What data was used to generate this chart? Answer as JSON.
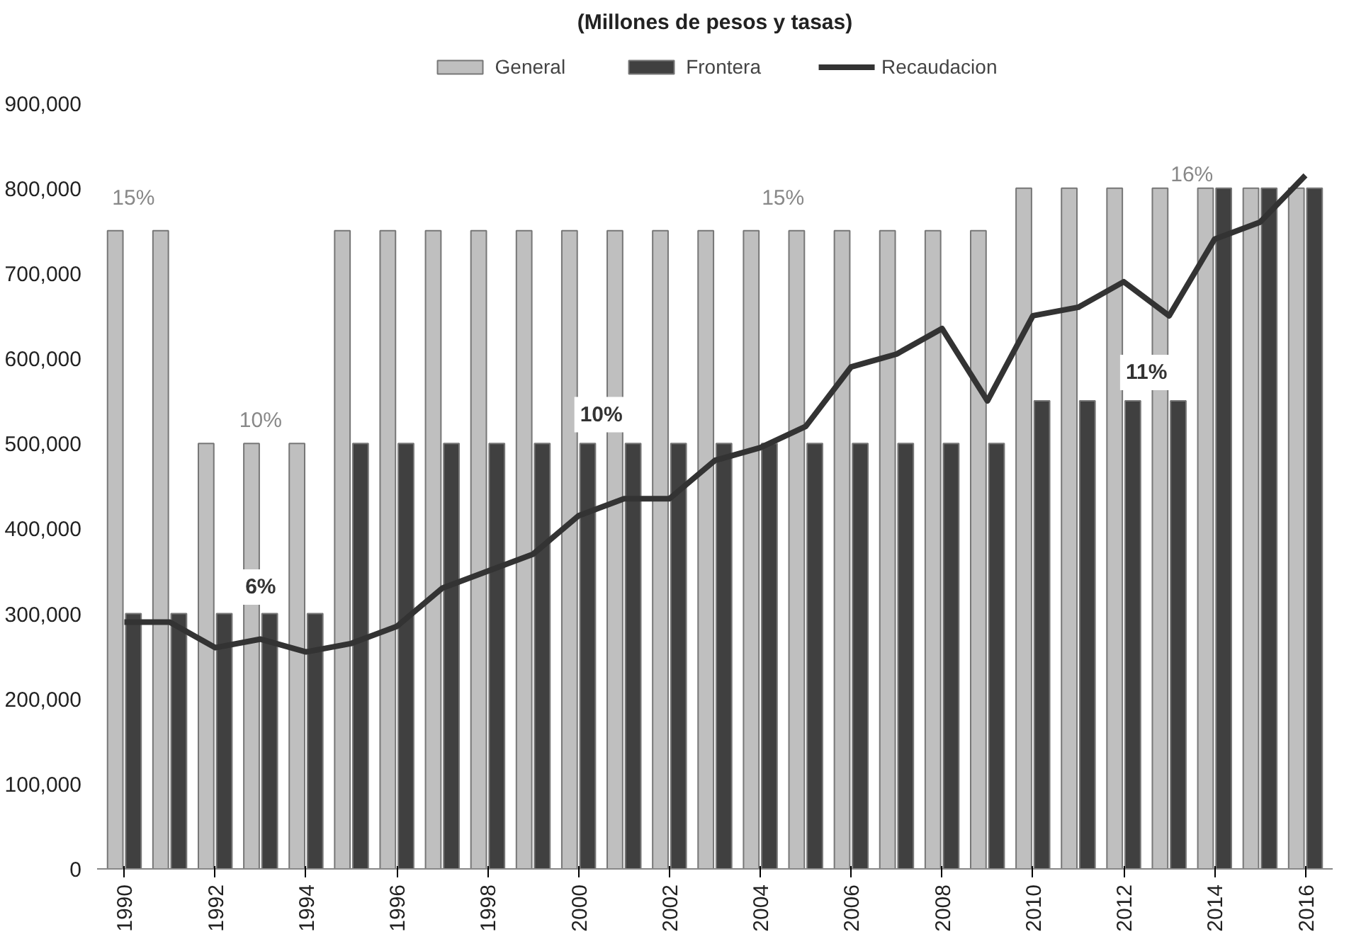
{
  "chart_data": {
    "type": "bar",
    "title": "(Millones de pesos y tasas)",
    "categories": [
      "1990",
      null,
      "1992",
      null,
      "1994",
      null,
      "1996",
      null,
      "1998",
      null,
      "2000",
      null,
      "2002",
      null,
      "2004",
      null,
      "2006",
      null,
      "2008",
      null,
      "2010",
      null,
      "2012",
      null,
      "2014",
      null,
      "2016"
    ],
    "series": [
      {
        "name": "General",
        "color": "#bfbfbf",
        "values": [
          750000,
          750000,
          500000,
          500000,
          500000,
          750000,
          750000,
          750000,
          750000,
          750000,
          750000,
          750000,
          750000,
          750000,
          750000,
          750000,
          750000,
          750000,
          750000,
          750000,
          800000,
          800000,
          800000,
          800000,
          800000,
          800000,
          800000
        ]
      },
      {
        "name": "Frontera",
        "color": "#404040",
        "values": [
          300000,
          300000,
          300000,
          300000,
          300000,
          500000,
          500000,
          500000,
          500000,
          500000,
          500000,
          500000,
          500000,
          500000,
          500000,
          500000,
          500000,
          500000,
          500000,
          500000,
          550000,
          550000,
          550000,
          550000,
          800000,
          800000,
          800000
        ]
      },
      {
        "name": "Recaudacion",
        "type": "line",
        "color": "#333333",
        "values": [
          290000,
          290000,
          260000,
          270000,
          255000,
          265000,
          285000,
          330000,
          350000,
          370000,
          415000,
          435000,
          435000,
          480000,
          495000,
          520000,
          590000,
          605000,
          635000,
          550000,
          650000,
          660000,
          690000,
          650000,
          740000,
          760000,
          815000
        ]
      }
    ],
    "ylim": [
      0,
      900000
    ],
    "yticks": [
      0,
      {
        "value": 100000,
        "label": "100,000"
      },
      {
        "value": 200000,
        "label": "200,000"
      },
      {
        "value": 300000,
        "label": "300,000"
      },
      {
        "value": 400000,
        "label": "400,000"
      },
      {
        "value": 500000,
        "label": "500,000"
      },
      {
        "value": 600000,
        "label": "600,000"
      },
      {
        "value": 700000,
        "label": "700,000"
      },
      {
        "value": 800000,
        "label": "800,000"
      },
      {
        "value": 900000,
        "label": "900,000"
      }
    ],
    "annotations": [
      "15%",
      "10%",
      "6%",
      "15%",
      "10%",
      "11%",
      "16%"
    ],
    "legend": "top",
    "grid": false
  }
}
